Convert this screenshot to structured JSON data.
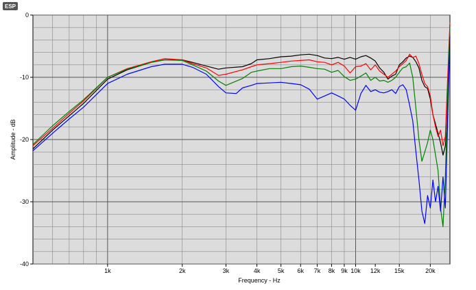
{
  "logo": {
    "text": "ESP"
  },
  "chart_data": {
    "type": "line",
    "title": "",
    "xlabel": "Frequency - Hz",
    "ylabel": "Amplitude - dB",
    "xscale": "log",
    "xlim": [
      500,
      24000
    ],
    "ylim": [
      -40,
      0
    ],
    "grid": true,
    "legend": "none",
    "background": "#dcdcdc",
    "x_ticks": [
      {
        "value": 1000,
        "label": "1k"
      },
      {
        "value": 2000,
        "label": "2k"
      },
      {
        "value": 3000,
        "label": "3k"
      },
      {
        "value": 4000,
        "label": "4k"
      },
      {
        "value": 5000,
        "label": "5k"
      },
      {
        "value": 6000,
        "label": "6k"
      },
      {
        "value": 7000,
        "label": "7k"
      },
      {
        "value": 8000,
        "label": "8k"
      },
      {
        "value": 9000,
        "label": "9k"
      },
      {
        "value": 10000,
        "label": "10k"
      },
      {
        "value": 12000,
        "label": "12k"
      },
      {
        "value": 15000,
        "label": "15k"
      },
      {
        "value": 20000,
        "label": "20k"
      }
    ],
    "y_ticks": [
      {
        "value": 0,
        "label": "0"
      },
      {
        "value": -10,
        "label": "-10"
      },
      {
        "value": -20,
        "label": "-20"
      },
      {
        "value": -30,
        "label": "-30"
      },
      {
        "value": -40,
        "label": "-40"
      }
    ],
    "series": [
      {
        "color": "#000000",
        "points": [
          [
            500,
            -21.5
          ],
          [
            600,
            -18.5
          ],
          [
            700,
            -16.2
          ],
          [
            800,
            -14.2
          ],
          [
            1000,
            -10.3
          ],
          [
            1200,
            -8.8
          ],
          [
            1500,
            -7.6
          ],
          [
            1700,
            -7.2
          ],
          [
            2000,
            -7.2
          ],
          [
            2200,
            -7.6
          ],
          [
            2500,
            -8.2
          ],
          [
            2800,
            -8.7
          ],
          [
            3000,
            -8.5
          ],
          [
            3500,
            -8.3
          ],
          [
            3800,
            -7.8
          ],
          [
            4000,
            -7.2
          ],
          [
            4500,
            -7.0
          ],
          [
            5000,
            -6.7
          ],
          [
            5500,
            -6.6
          ],
          [
            6000,
            -6.4
          ],
          [
            6500,
            -6.3
          ],
          [
            7000,
            -6.5
          ],
          [
            7500,
            -6.9
          ],
          [
            8000,
            -7.0
          ],
          [
            8500,
            -6.8
          ],
          [
            9000,
            -7.1
          ],
          [
            9500,
            -6.8
          ],
          [
            10000,
            -7.1
          ],
          [
            10500,
            -6.7
          ],
          [
            11000,
            -6.5
          ],
          [
            11500,
            -6.9
          ],
          [
            12000,
            -7.4
          ],
          [
            12500,
            -8.5
          ],
          [
            13000,
            -9.2
          ],
          [
            13500,
            -10.3
          ],
          [
            14000,
            -9.8
          ],
          [
            14500,
            -9.5
          ],
          [
            15000,
            -8.0
          ],
          [
            15500,
            -7.5
          ],
          [
            16000,
            -6.9
          ],
          [
            16500,
            -6.6
          ],
          [
            17000,
            -6.8
          ],
          [
            17500,
            -7.5
          ],
          [
            18000,
            -8.5
          ],
          [
            18500,
            -10.5
          ],
          [
            19000,
            -11.5
          ],
          [
            19500,
            -11.8
          ],
          [
            20000,
            -13.5
          ],
          [
            20500,
            -16.0
          ],
          [
            21000,
            -17.5
          ],
          [
            21500,
            -19.0
          ],
          [
            22000,
            -20.5
          ],
          [
            22500,
            -22.5
          ],
          [
            23000,
            -21.0
          ],
          [
            23500,
            -16.0
          ],
          [
            24000,
            -1.5
          ]
        ]
      },
      {
        "color": "#ff0000",
        "points": [
          [
            500,
            -21.0
          ],
          [
            600,
            -18.2
          ],
          [
            700,
            -15.8
          ],
          [
            800,
            -13.8
          ],
          [
            1000,
            -10.0
          ],
          [
            1200,
            -8.6
          ],
          [
            1500,
            -7.5
          ],
          [
            1700,
            -7.0
          ],
          [
            2000,
            -7.2
          ],
          [
            2200,
            -7.8
          ],
          [
            2500,
            -8.5
          ],
          [
            2800,
            -9.7
          ],
          [
            3000,
            -9.5
          ],
          [
            3500,
            -8.8
          ],
          [
            3800,
            -8.3
          ],
          [
            4000,
            -8.0
          ],
          [
            4500,
            -7.8
          ],
          [
            5000,
            -7.6
          ],
          [
            5500,
            -7.4
          ],
          [
            6000,
            -7.3
          ],
          [
            6500,
            -7.2
          ],
          [
            7000,
            -7.5
          ],
          [
            7500,
            -7.6
          ],
          [
            8000,
            -8.0
          ],
          [
            8500,
            -7.6
          ],
          [
            9000,
            -8.2
          ],
          [
            9500,
            -9.3
          ],
          [
            10000,
            -8.3
          ],
          [
            10500,
            -8.2
          ],
          [
            11000,
            -7.8
          ],
          [
            11500,
            -8.8
          ],
          [
            12000,
            -8.0
          ],
          [
            12500,
            -9.0
          ],
          [
            13000,
            -9.5
          ],
          [
            13500,
            -10.0
          ],
          [
            14000,
            -9.5
          ],
          [
            14500,
            -9.0
          ],
          [
            15000,
            -8.3
          ],
          [
            15500,
            -7.8
          ],
          [
            16000,
            -7.3
          ],
          [
            16500,
            -6.3
          ],
          [
            17000,
            -6.8
          ],
          [
            17500,
            -6.6
          ],
          [
            18000,
            -7.8
          ],
          [
            18500,
            -9.5
          ],
          [
            19000,
            -11.0
          ],
          [
            19500,
            -11.5
          ],
          [
            20000,
            -13.0
          ],
          [
            20500,
            -16.0
          ],
          [
            21000,
            -18.0
          ],
          [
            21500,
            -19.5
          ],
          [
            22000,
            -18.5
          ],
          [
            22500,
            -21.0
          ],
          [
            23000,
            -19.5
          ],
          [
            23500,
            -10.0
          ],
          [
            24000,
            -1.2
          ]
        ]
      },
      {
        "color": "#008000",
        "points": [
          [
            500,
            -20.8
          ],
          [
            600,
            -17.8
          ],
          [
            700,
            -15.5
          ],
          [
            800,
            -13.6
          ],
          [
            1000,
            -10.0
          ],
          [
            1200,
            -8.7
          ],
          [
            1500,
            -7.6
          ],
          [
            1700,
            -7.2
          ],
          [
            2000,
            -7.3
          ],
          [
            2200,
            -8.0
          ],
          [
            2500,
            -9.0
          ],
          [
            2800,
            -10.6
          ],
          [
            3000,
            -11.3
          ],
          [
            3500,
            -10.2
          ],
          [
            3800,
            -9.2
          ],
          [
            4000,
            -9.0
          ],
          [
            4500,
            -8.6
          ],
          [
            5000,
            -8.6
          ],
          [
            5500,
            -8.3
          ],
          [
            6000,
            -8.2
          ],
          [
            6500,
            -8.4
          ],
          [
            7000,
            -8.6
          ],
          [
            7500,
            -8.7
          ],
          [
            8000,
            -9.2
          ],
          [
            8500,
            -8.9
          ],
          [
            9000,
            -9.9
          ],
          [
            9500,
            -10.5
          ],
          [
            10000,
            -10.3
          ],
          [
            10500,
            -9.8
          ],
          [
            11000,
            -9.3
          ],
          [
            11500,
            -10.5
          ],
          [
            12000,
            -10.0
          ],
          [
            12500,
            -10.6
          ],
          [
            13000,
            -10.5
          ],
          [
            13500,
            -10.8
          ],
          [
            14000,
            -10.5
          ],
          [
            14500,
            -10.0
          ],
          [
            15000,
            -9.2
          ],
          [
            15500,
            -8.5
          ],
          [
            16000,
            -8.3
          ],
          [
            16500,
            -7.7
          ],
          [
            17000,
            -10.0
          ],
          [
            17500,
            -15.0
          ],
          [
            18000,
            -20.0
          ],
          [
            18500,
            -23.5
          ],
          [
            19000,
            -22.0
          ],
          [
            19500,
            -20.5
          ],
          [
            20000,
            -18.5
          ],
          [
            20500,
            -20.0
          ],
          [
            21000,
            -22.5
          ],
          [
            21500,
            -25.0
          ],
          [
            22000,
            -31.0
          ],
          [
            22500,
            -34.0
          ],
          [
            23000,
            -26.0
          ],
          [
            23500,
            -12.0
          ],
          [
            24000,
            -2.0
          ]
        ]
      },
      {
        "color": "#0000ff",
        "points": [
          [
            500,
            -21.8
          ],
          [
            600,
            -19.0
          ],
          [
            700,
            -16.7
          ],
          [
            800,
            -14.8
          ],
          [
            1000,
            -11.0
          ],
          [
            1200,
            -9.5
          ],
          [
            1500,
            -8.3
          ],
          [
            1700,
            -7.9
          ],
          [
            2000,
            -7.9
          ],
          [
            2200,
            -8.4
          ],
          [
            2500,
            -9.5
          ],
          [
            2800,
            -11.5
          ],
          [
            3000,
            -12.5
          ],
          [
            3300,
            -12.6
          ],
          [
            3500,
            -11.7
          ],
          [
            3800,
            -11.3
          ],
          [
            4000,
            -11.0
          ],
          [
            4500,
            -10.9
          ],
          [
            5000,
            -10.8
          ],
          [
            5500,
            -11.0
          ],
          [
            6000,
            -11.2
          ],
          [
            6500,
            -11.9
          ],
          [
            7000,
            -13.5
          ],
          [
            7500,
            -13.0
          ],
          [
            8000,
            -12.5
          ],
          [
            8500,
            -13.0
          ],
          [
            9000,
            -13.5
          ],
          [
            9500,
            -14.5
          ],
          [
            10000,
            -15.3
          ],
          [
            10500,
            -12.6
          ],
          [
            11000,
            -11.3
          ],
          [
            11500,
            -12.3
          ],
          [
            12000,
            -12.0
          ],
          [
            12500,
            -12.4
          ],
          [
            13000,
            -12.5
          ],
          [
            13500,
            -12.3
          ],
          [
            14000,
            -12.0
          ],
          [
            14500,
            -12.6
          ],
          [
            15000,
            -11.5
          ],
          [
            15500,
            -11.2
          ],
          [
            16000,
            -12.0
          ],
          [
            16500,
            -14.5
          ],
          [
            17000,
            -17.0
          ],
          [
            17500,
            -22.0
          ],
          [
            18000,
            -26.5
          ],
          [
            18500,
            -31.5
          ],
          [
            19000,
            -33.5
          ],
          [
            19500,
            -29.0
          ],
          [
            20000,
            -31.0
          ],
          [
            20500,
            -26.5
          ],
          [
            21000,
            -30.0
          ],
          [
            21500,
            -27.5
          ],
          [
            22000,
            -31.5
          ],
          [
            22500,
            -26.0
          ],
          [
            23000,
            -31.0
          ],
          [
            23500,
            -17.0
          ],
          [
            24000,
            -3.5
          ]
        ]
      }
    ]
  }
}
